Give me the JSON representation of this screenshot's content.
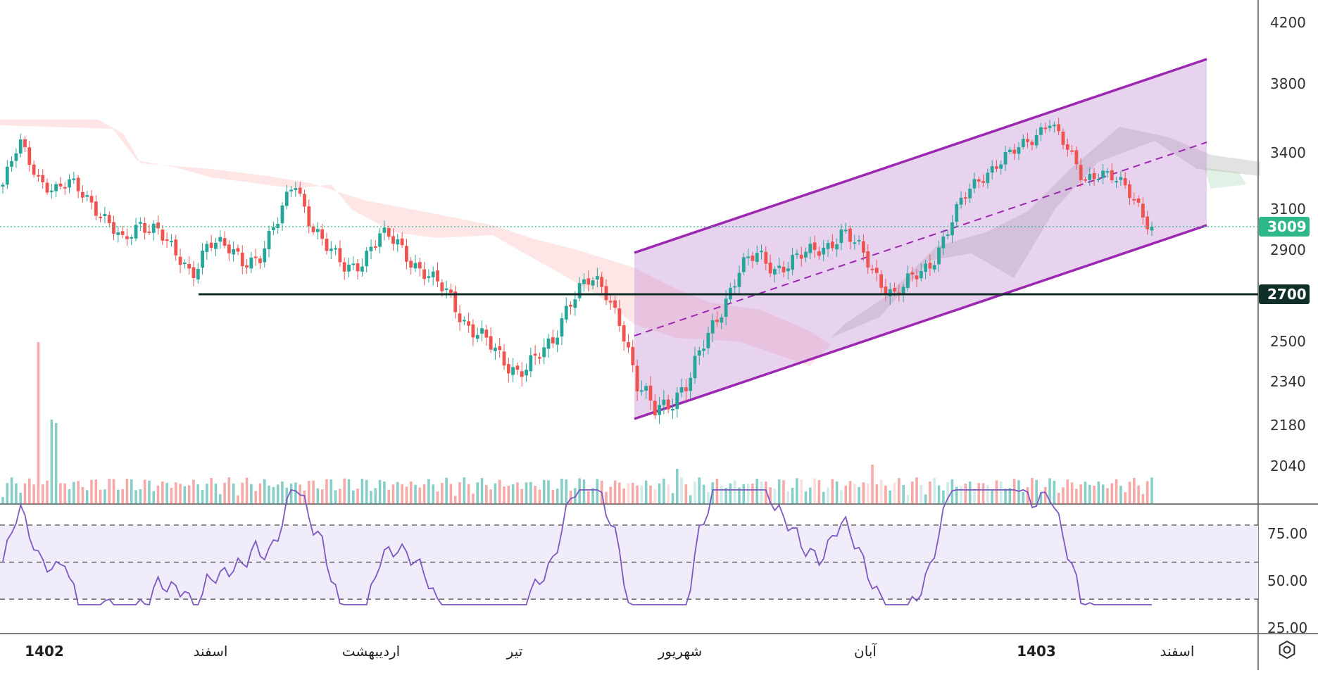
{
  "chart_data": {
    "type": "candlestick",
    "price_axis": {
      "ticks": [
        "4200",
        "3800",
        "3400",
        "3100",
        "2900",
        "2500",
        "2340",
        "2180",
        "2040"
      ],
      "last_price_label": "3009",
      "horizontal_level_label": "2700",
      "range": [
        1940,
        4300
      ]
    },
    "time_axis": {
      "labels": [
        {
          "text": "1402",
          "bold": true
        },
        {
          "text": "اسفند",
          "bold": false
        },
        {
          "text": "اردیبهشت",
          "bold": false
        },
        {
          "text": "تیر",
          "bold": false
        },
        {
          "text": "شهریور",
          "bold": false
        },
        {
          "text": "آبان",
          "bold": false
        },
        {
          "text": "1403",
          "bold": true
        },
        {
          "text": "اسفند",
          "bold": false
        }
      ]
    },
    "rsi_axis": {
      "ticks": [
        "75.00",
        "50.00",
        "25.00"
      ],
      "band": [
        30,
        70
      ]
    },
    "series_close_estimate": [
      3230,
      3450,
      3280,
      3200,
      3230,
      3160,
      3050,
      2920,
      3030,
      3010,
      2870,
      2790,
      2950,
      2900,
      2850,
      2880,
      3020,
      3260,
      3020,
      2890,
      2820,
      2860,
      2960,
      2940,
      2840,
      2760,
      2700,
      2580,
      2510,
      2430,
      2390,
      2420,
      2480,
      2680,
      2760,
      2720,
      2600,
      2320,
      2230,
      2280,
      2340,
      2500,
      2660,
      2820,
      2870,
      2820,
      2850,
      2880,
      2920,
      2990,
      2890,
      2780,
      2700,
      2760,
      2830,
      2980,
      3150,
      3270,
      3350,
      3400,
      3480,
      3600,
      3420,
      3260,
      3310,
      3240,
      3150,
      3009
    ],
    "colors": {
      "up": "#26a69a",
      "down": "#ef5350",
      "channel": "#9c27b0",
      "channel_fill": "#e7d2ee",
      "rsi_line": "#7e57c2",
      "rsi_band": "#f1ecfa",
      "level_line": "#0f2f28",
      "last_price_tag": "#2eb88a"
    }
  },
  "icons": {
    "settings": "settings-icon"
  }
}
